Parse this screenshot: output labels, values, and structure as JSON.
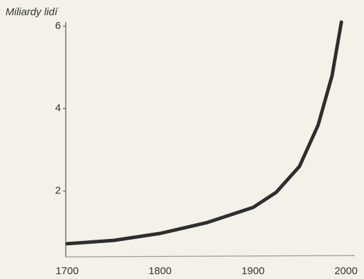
{
  "chart_data": {
    "type": "line",
    "y_label": "Miliardy lidí",
    "x": [
      1700,
      1750,
      1800,
      1850,
      1900,
      1925,
      1950,
      1970,
      1985,
      1995
    ],
    "series": [
      {
        "name": null,
        "color": "#2e2e2e",
        "values": [
          0.72,
          0.8,
          0.97,
          1.23,
          1.6,
          1.97,
          2.6,
          3.6,
          4.8,
          6.1
        ]
      }
    ],
    "xlim": [
      1700,
      2000
    ],
    "xticks": [
      1700,
      1800,
      1900,
      2000
    ],
    "ylim": [
      0.4,
      6.1
    ],
    "yticks": [
      2,
      4,
      6
    ],
    "grid": false
  }
}
